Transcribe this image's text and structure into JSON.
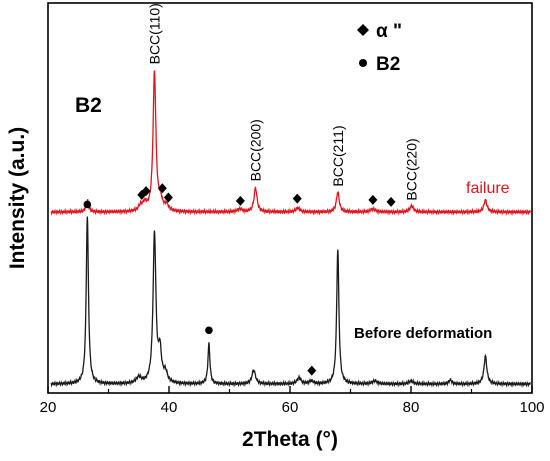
{
  "chart_data": {
    "type": "line",
    "xlabel": "2Theta (°)",
    "ylabel": "Intensity (a.u.)",
    "xlim": [
      20,
      100
    ],
    "xticks": [
      "20",
      "40",
      "60",
      "80",
      "100"
    ],
    "grid": false,
    "colors": {
      "failure": "#e0141e",
      "before": "#1a1a1a",
      "axis": "#000000"
    },
    "legend": {
      "alpha_label": "α \"",
      "b2_label": "B2",
      "alpha_marker": "diamond",
      "b2_marker": "circle"
    },
    "big_b2_label": "B2",
    "peak_labels": [
      {
        "text": "BCC(110)",
        "x": 37.6
      },
      {
        "text": "BCC(200)",
        "x": 54.3
      },
      {
        "text": "BCC(211)",
        "x": 67.9
      },
      {
        "text": "BCC(220)",
        "x": 80.1
      }
    ],
    "series": [
      {
        "name": "failure",
        "baseline": 0,
        "peaks": [
          {
            "x": 26.5,
            "h": 12,
            "w": 0.25
          },
          {
            "x": 35.3,
            "h": 5,
            "w": 0.4
          },
          {
            "x": 36.0,
            "h": 7,
            "w": 0.4
          },
          {
            "x": 37.6,
            "h": 140,
            "w": 0.28
          },
          {
            "x": 38.6,
            "h": 10,
            "w": 0.35
          },
          {
            "x": 39.6,
            "h": 6,
            "w": 0.4
          },
          {
            "x": 51.7,
            "h": 3,
            "w": 0.5
          },
          {
            "x": 54.3,
            "h": 24,
            "w": 0.3
          },
          {
            "x": 61.3,
            "h": 4,
            "w": 0.4
          },
          {
            "x": 67.9,
            "h": 20,
            "w": 0.28
          },
          {
            "x": 73.7,
            "h": 3,
            "w": 0.5
          },
          {
            "x": 80.1,
            "h": 6,
            "w": 0.35
          },
          {
            "x": 92.3,
            "h": 12,
            "w": 0.3
          }
        ]
      },
      {
        "name": "Before deformation",
        "baseline": 0,
        "peaks": [
          {
            "x": 26.5,
            "h": 168,
            "w": 0.22
          },
          {
            "x": 35.0,
            "h": 6,
            "w": 0.5
          },
          {
            "x": 37.6,
            "h": 150,
            "w": 0.28
          },
          {
            "x": 38.5,
            "h": 30,
            "w": 0.3
          },
          {
            "x": 39.4,
            "h": 10,
            "w": 0.4
          },
          {
            "x": 46.6,
            "h": 40,
            "w": 0.2
          },
          {
            "x": 54.0,
            "h": 14,
            "w": 0.35
          },
          {
            "x": 61.5,
            "h": 6,
            "w": 0.4
          },
          {
            "x": 63.5,
            "h": 3,
            "w": 0.4
          },
          {
            "x": 67.9,
            "h": 135,
            "w": 0.22
          },
          {
            "x": 74.0,
            "h": 3,
            "w": 0.5
          },
          {
            "x": 80.0,
            "h": 3,
            "w": 0.4
          },
          {
            "x": 86.5,
            "h": 4,
            "w": 0.3
          },
          {
            "x": 92.3,
            "h": 28,
            "w": 0.28
          }
        ]
      }
    ],
    "markers": [
      {
        "type": "circle",
        "series": "Before deformation",
        "x": 26.5
      },
      {
        "type": "diamond",
        "series": "failure",
        "x": 35.5
      },
      {
        "type": "diamond",
        "series": "failure",
        "x": 36.2
      },
      {
        "type": "diamond",
        "series": "failure",
        "x": 38.9
      },
      {
        "type": "diamond",
        "series": "failure",
        "x": 39.9
      },
      {
        "type": "diamond",
        "series": "failure",
        "x": 51.8
      },
      {
        "type": "diamond",
        "series": "failure",
        "x": 61.2
      },
      {
        "type": "diamond",
        "series": "failure",
        "x": 73.7
      },
      {
        "type": "diamond",
        "series": "failure",
        "x": 76.7
      },
      {
        "type": "circle",
        "series": "Before deformation",
        "x": 46.6
      },
      {
        "type": "diamond",
        "series": "Before deformation",
        "x": 63.6
      }
    ],
    "series_labels": {
      "failure": "failure",
      "before": "Before deformation"
    }
  }
}
